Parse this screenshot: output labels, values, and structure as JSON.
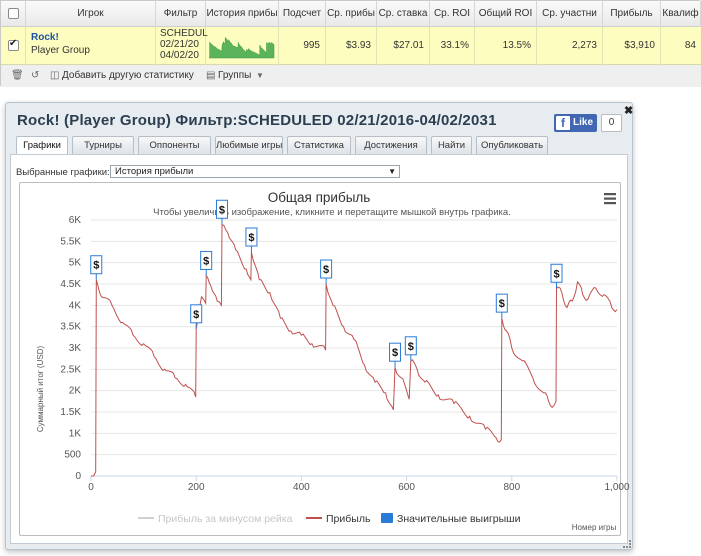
{
  "table": {
    "headers": {
      "player": "Игрок",
      "filter": "Фильтр",
      "history": "История прибы",
      "count": "Подсчет",
      "avg_profit": "Ср. прибы",
      "avg_stake": "Ср. ставка",
      "avg_roi": "Ср. ROI",
      "total_roi": "Общий ROI",
      "avg_entrants": "Ср. участни",
      "profit": "Прибыль",
      "quality": "Квалиф"
    },
    "row": {
      "player_name": "Rock!",
      "player_group": "Player Group",
      "filter_line1": "SCHEDUL",
      "filter_line2": "02/21/20",
      "filter_line3": "04/02/20",
      "count": "995",
      "avg_profit": "$3.93",
      "avg_stake": "$27.01",
      "avg_roi": "33.1%",
      "total_roi": "13.5%",
      "avg_entrants": "2,273",
      "profit": "$3,910",
      "quality": "84"
    },
    "toolbar": {
      "add_stat_label": "Добавить другую статистику",
      "groups_label": "Группы"
    }
  },
  "dialog": {
    "title": "Rock! (Player Group) Фильтр:SCHEDULED 02/21/2016-04/02/2031",
    "fb_like_label": "Like",
    "fb_count": "0",
    "tabs": [
      "Графики",
      "Турниры",
      "Оппоненты",
      "Любимые игры",
      "Статистика",
      "Достижения",
      "Найти",
      "Опубликовать"
    ],
    "selector_label": "Выбранные графики:",
    "selector_value": "История прибыли"
  },
  "chart_data": {
    "type": "line",
    "title": "Общая прибыль",
    "subtitle": "Чтобы увеличить изображение, кликните и перетащите мышкой внутрь графика.",
    "ylabel": "Суммарный итог (USD)",
    "xlabel": "Номер игры",
    "xlim": [
      0,
      1000
    ],
    "ylim": [
      0,
      6000
    ],
    "x_ticks": [
      0,
      200,
      400,
      600,
      800,
      1000
    ],
    "x_tick_labels": [
      "0",
      "200",
      "400",
      "600",
      "800",
      "1,000"
    ],
    "y_ticks": [
      0,
      500,
      1000,
      1500,
      2000,
      2500,
      3000,
      3500,
      4000,
      4500,
      5000,
      5500,
      6000
    ],
    "y_tick_labels": [
      "0",
      "500",
      "1K",
      "1.5K",
      "2K",
      "2.5K",
      "3K",
      "3.5K",
      "4K",
      "4.5K",
      "5K",
      "5.5K",
      "6K"
    ],
    "legend": [
      "Прибыль за минусом рейка",
      "Прибыль",
      "Значительные выигрыши"
    ],
    "legend_colors": [
      "#d0d0d0",
      "#c0504d",
      "#2a7bd5"
    ],
    "grid": true,
    "series": [
      {
        "name": "Прибыль",
        "color": "#c0504d",
        "x": [
          0,
          5,
          9,
          10,
          20,
          40,
          60,
          80,
          100,
          120,
          140,
          160,
          180,
          199,
          200,
          210,
          218,
          219,
          228,
          240,
          248,
          249,
          260,
          275,
          295,
          304,
          305,
          320,
          340,
          360,
          380,
          400,
          420,
          446,
          447,
          460,
          480,
          500,
          520,
          540,
          560,
          575,
          578,
          590,
          605,
          608,
          620,
          635,
          660,
          690,
          720,
          750,
          770,
          780,
          781,
          790,
          800,
          820,
          840,
          860,
          870,
          880,
          884,
          885,
          895,
          905,
          915,
          925,
          935,
          945,
          960,
          975,
          990,
          1000
        ],
        "y": [
          0,
          0,
          100,
          4600,
          4200,
          4000,
          3600,
          3300,
          3100,
          2800,
          2500,
          2300,
          2150,
          1850,
          3450,
          4200,
          4050,
          4700,
          4450,
          4100,
          4000,
          5900,
          5700,
          5300,
          4850,
          4600,
          5250,
          4600,
          4300,
          3700,
          3400,
          3300,
          3100,
          2950,
          4500,
          4000,
          3500,
          3200,
          2600,
          2200,
          1950,
          1550,
          2550,
          2300,
          1800,
          2700,
          2500,
          2200,
          1900,
          1700,
          1400,
          1100,
          900,
          850,
          3700,
          3400,
          3000,
          2700,
          2300,
          1950,
          1750,
          1650,
          1750,
          4400,
          4300,
          3950,
          4100,
          4550,
          4250,
          4150,
          4400,
          4250,
          3950,
          3900
        ]
      },
      {
        "name": "Значительные выигрыши",
        "type": "flags",
        "color": "#2a7bd5",
        "x": [
          10,
          200,
          219,
          249,
          305,
          447,
          578,
          608,
          781,
          885
        ],
        "y": [
          4600,
          3450,
          4700,
          5900,
          5250,
          4500,
          2550,
          2700,
          3700,
          4400
        ],
        "labels": [
          "$",
          "$",
          "$",
          "$",
          "$",
          "$",
          "$",
          "$",
          "$",
          "$"
        ]
      }
    ]
  },
  "colors": {
    "row_highlight": "#fdfdc0",
    "sparkline": "#5bb35b",
    "profit_line": "#c0504d",
    "flag_border": "#2a7bd5"
  }
}
